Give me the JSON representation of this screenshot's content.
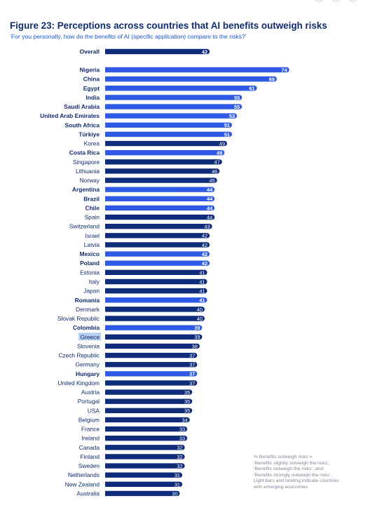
{
  "title": "Figure 23: Perceptions across countries that AI benefits outweigh risks",
  "subtitle": "‘For you personally, how do the benefits of AI (specific application) compare to the risks?’",
  "note": [
    "% Benefits outweigh risks =",
    "‘Benefits slightly outweigh the risks’,",
    "‘Benefits outweigh the risks’, and",
    "‘Benefits strongly outweigh the risks’.",
    "Light bars and bolding indicate countries",
    "with emerging economies"
  ],
  "colors": {
    "emerging": "#2e5ae6",
    "advanced": "#0f2c7a",
    "highlight": "#b8cdf0"
  },
  "chart_data": {
    "type": "bar",
    "orientation": "horizontal",
    "title": "Figure 23: Perceptions across countries that AI benefits outweigh risks",
    "subtitle": "‘For you personally, how do the benefits of AI (specific application) compare to the risks?’",
    "xlim": [
      0,
      100
    ],
    "grid": false,
    "highlighted_category": "Greece",
    "overall": {
      "label": "Overall",
      "value": 42
    },
    "categories": [
      "Nigeria",
      "China",
      "Egypt",
      "India",
      "Saudi Arabia",
      "United Arab Emirates",
      "South Africa",
      "Türkiye",
      "Korea",
      "Costa Rica",
      "Singapore",
      "Lithuania",
      "Norway",
      "Argentina",
      "Brazil",
      "Chile",
      "Spain",
      "Switzerland",
      "Israel",
      "Latvia",
      "Mexico",
      "Poland",
      "Estonia",
      "Italy",
      "Japan",
      "Romania",
      "Denmark",
      "Slovak Republic",
      "Colombia",
      "Greece",
      "Slovenia",
      "Czech Republic",
      "Germany",
      "Hungary",
      "United Kingdom",
      "Austria",
      "Portugal",
      "USA",
      "Belgium",
      "France",
      "Ireland",
      "Canada",
      "Finland",
      "Sweden",
      "Netherlands",
      "New Zealand",
      "Australia"
    ],
    "values": [
      74,
      69,
      61,
      55,
      55,
      53,
      51,
      51,
      49,
      48,
      47,
      46,
      45,
      44,
      44,
      44,
      44,
      43,
      42,
      42,
      42,
      42,
      41,
      41,
      41,
      41,
      40,
      40,
      39,
      39,
      38,
      37,
      37,
      37,
      37,
      35,
      35,
      35,
      34,
      33,
      33,
      32,
      32,
      32,
      31,
      31,
      30
    ],
    "emerging": [
      true,
      true,
      true,
      true,
      true,
      true,
      true,
      true,
      false,
      true,
      false,
      false,
      false,
      true,
      true,
      true,
      false,
      false,
      false,
      false,
      true,
      true,
      false,
      false,
      false,
      true,
      false,
      false,
      true,
      false,
      false,
      false,
      false,
      true,
      false,
      false,
      false,
      false,
      false,
      false,
      false,
      false,
      false,
      false,
      false,
      false,
      false
    ]
  }
}
